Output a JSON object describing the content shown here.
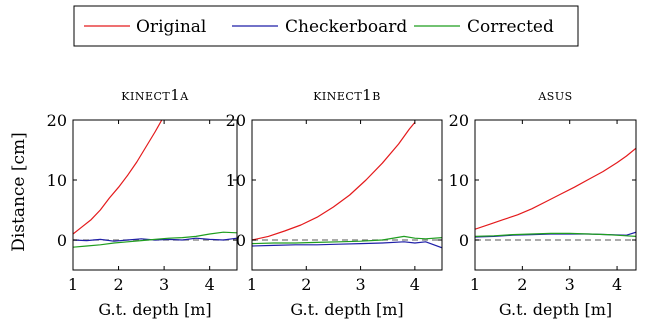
{
  "legend": {
    "placement": "top-center",
    "entries": [
      {
        "label": "Original",
        "color": "#e41a1c"
      },
      {
        "label": "Checkerboard",
        "color": "#1f1fa8"
      },
      {
        "label": "Corrected",
        "color": "#1f9e1f"
      }
    ]
  },
  "shared": {
    "xlabel": "G.t. depth [m]",
    "ylabel": "Distance [cm]",
    "reference_line": {
      "y": 0,
      "style": "dashed",
      "color": "#777777"
    }
  },
  "chart_data": [
    {
      "type": "line",
      "title": "KINECT1A",
      "xlabel": "G.t. depth [m]",
      "ylabel": "Distance [cm]",
      "xlim": [
        1,
        4.6
      ],
      "ylim": [
        -5,
        20
      ],
      "xticks": [
        1,
        2,
        3,
        4
      ],
      "yticks": [
        0,
        10,
        20
      ],
      "series": [
        {
          "name": "Original",
          "color": "#e41a1c",
          "x": [
            1.0,
            1.2,
            1.4,
            1.6,
            1.8,
            2.0,
            2.2,
            2.4,
            2.6,
            2.8,
            2.95
          ],
          "y": [
            1.0,
            2.2,
            3.4,
            5.0,
            7.0,
            8.8,
            10.8,
            13.0,
            15.5,
            18.0,
            20.0
          ]
        },
        {
          "name": "Checkerboard",
          "color": "#1f1fa8",
          "x": [
            1.0,
            1.3,
            1.6,
            1.9,
            2.2,
            2.5,
            2.8,
            3.1,
            3.4,
            3.7,
            4.0,
            4.3,
            4.6
          ],
          "y": [
            0.0,
            -0.1,
            0.1,
            -0.2,
            0.0,
            0.2,
            0.0,
            0.1,
            0.0,
            0.3,
            0.1,
            0.0,
            0.3
          ]
        },
        {
          "name": "Corrected",
          "color": "#1f9e1f",
          "x": [
            1.0,
            1.3,
            1.6,
            1.9,
            2.2,
            2.5,
            2.8,
            3.1,
            3.4,
            3.7,
            4.0,
            4.3,
            4.6
          ],
          "y": [
            -1.2,
            -1.0,
            -0.8,
            -0.5,
            -0.3,
            -0.1,
            0.1,
            0.3,
            0.4,
            0.6,
            1.0,
            1.3,
            1.2
          ]
        }
      ]
    },
    {
      "type": "line",
      "title": "KINECT1B",
      "xlabel": "G.t. depth [m]",
      "ylabel": "",
      "xlim": [
        1,
        4.5
      ],
      "ylim": [
        -5,
        20
      ],
      "xticks": [
        1,
        2,
        3,
        4
      ],
      "yticks": [
        0,
        10,
        20
      ],
      "series": [
        {
          "name": "Original",
          "color": "#e41a1c",
          "x": [
            1.0,
            1.3,
            1.6,
            1.9,
            2.2,
            2.5,
            2.8,
            3.1,
            3.4,
            3.7,
            3.9,
            4.0
          ],
          "y": [
            0.0,
            0.6,
            1.5,
            2.5,
            3.8,
            5.5,
            7.5,
            10.0,
            12.8,
            16.0,
            18.5,
            19.6
          ]
        },
        {
          "name": "Checkerboard",
          "color": "#1f1fa8",
          "x": [
            1.0,
            1.4,
            1.8,
            2.2,
            2.6,
            3.0,
            3.4,
            3.8,
            4.0,
            4.2,
            4.5
          ],
          "y": [
            -1.0,
            -0.9,
            -0.8,
            -0.8,
            -0.7,
            -0.6,
            -0.5,
            -0.3,
            -0.5,
            -0.3,
            -1.3
          ]
        },
        {
          "name": "Corrected",
          "color": "#1f9e1f",
          "x": [
            1.0,
            1.4,
            1.8,
            2.2,
            2.6,
            3.0,
            3.4,
            3.8,
            4.0,
            4.2,
            4.5
          ],
          "y": [
            -0.6,
            -0.5,
            -0.5,
            -0.4,
            -0.3,
            -0.2,
            0.0,
            0.6,
            0.3,
            0.2,
            0.4
          ]
        }
      ]
    },
    {
      "type": "line",
      "title": "ASUS",
      "xlabel": "G.t. depth [m]",
      "ylabel": "",
      "xlim": [
        1,
        4.4
      ],
      "ylim": [
        -5,
        20
      ],
      "xticks": [
        1,
        2,
        3,
        4
      ],
      "yticks": [
        0,
        10,
        20
      ],
      "series": [
        {
          "name": "Original",
          "color": "#e41a1c",
          "x": [
            1.0,
            1.3,
            1.6,
            1.9,
            2.2,
            2.5,
            2.8,
            3.1,
            3.4,
            3.7,
            4.0,
            4.2,
            4.4
          ],
          "y": [
            1.8,
            2.6,
            3.4,
            4.2,
            5.2,
            6.4,
            7.6,
            8.8,
            10.1,
            11.4,
            12.9,
            14.0,
            15.3
          ]
        },
        {
          "name": "Checkerboard",
          "color": "#1f1fa8",
          "x": [
            1.0,
            1.4,
            1.8,
            2.2,
            2.6,
            3.0,
            3.4,
            3.8,
            4.2,
            4.4
          ],
          "y": [
            0.5,
            0.6,
            0.8,
            0.9,
            1.0,
            1.0,
            1.0,
            0.9,
            0.8,
            1.3
          ]
        },
        {
          "name": "Corrected",
          "color": "#1f9e1f",
          "x": [
            1.0,
            1.4,
            1.8,
            2.2,
            2.6,
            3.0,
            3.4,
            3.8,
            4.2,
            4.4
          ],
          "y": [
            0.6,
            0.7,
            0.9,
            1.0,
            1.1,
            1.1,
            1.0,
            0.9,
            0.7,
            0.6
          ]
        }
      ]
    }
  ]
}
